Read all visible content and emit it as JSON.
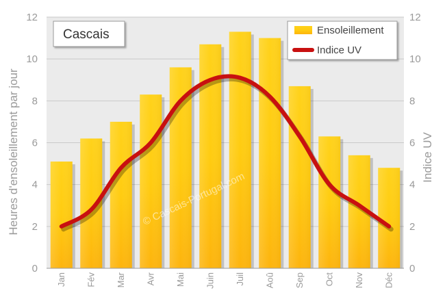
{
  "chart_data": {
    "type": "bar",
    "title": "Cascais",
    "categories": [
      "Jan",
      "Fév",
      "Mar",
      "Avr",
      "Mai",
      "Juin",
      "Juil",
      "Aoû",
      "Sep",
      "Oct",
      "Nov",
      "Déc"
    ],
    "series": [
      {
        "name": "Ensoleillement",
        "kind": "bar",
        "axis": "left",
        "values": [
          5.1,
          6.2,
          7.0,
          8.3,
          9.6,
          10.7,
          11.3,
          11.0,
          8.7,
          6.3,
          5.4,
          4.8
        ]
      },
      {
        "name": "Indice UV",
        "kind": "line",
        "axis": "right",
        "values": [
          2.0,
          2.8,
          4.8,
          6.0,
          8.0,
          9.0,
          9.1,
          8.2,
          6.3,
          4.0,
          3.0,
          2.0
        ]
      }
    ],
    "ylabel": "Heures d'ensoleillement par jour",
    "y2label": "Indice UV",
    "ylim": [
      0,
      12
    ],
    "y2lim": [
      0,
      12
    ],
    "yticks": [
      "0",
      "2",
      "4",
      "6",
      "8",
      "10",
      "12"
    ],
    "legend_position": "top-right",
    "grid": true,
    "watermark": "© Cascais-Portugal.com",
    "colors": {
      "bar_top": "#ffd21a",
      "bar_bottom": "#fdb40d",
      "line": "#c81010",
      "plot_bg": "#ebebeb",
      "grid": "#c9c9c9"
    }
  }
}
